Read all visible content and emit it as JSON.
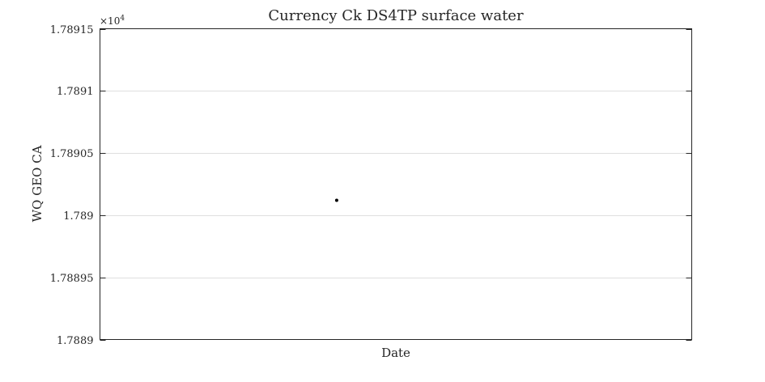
{
  "chart_data": {
    "type": "scatter",
    "title": "Currency Ck DS4TP surface water",
    "xlabel": "Date",
    "ylabel": "WQ GEO CA",
    "y_multiplier_base": "×10",
    "y_multiplier_exponent": "4",
    "ylim": [
      1.7889,
      1.78915
    ],
    "yticks": [
      1.7889,
      1.78895,
      1.789,
      1.78905,
      1.7891,
      1.78915
    ],
    "ytick_labels": [
      "1.7889",
      "1.78895",
      "1.789",
      "1.78905",
      "1.7891",
      "1.78915"
    ],
    "x_relative": [
      0.4
    ],
    "y": [
      1.789012
    ],
    "grid": true,
    "legend": "none",
    "marker_color": "#000000"
  }
}
